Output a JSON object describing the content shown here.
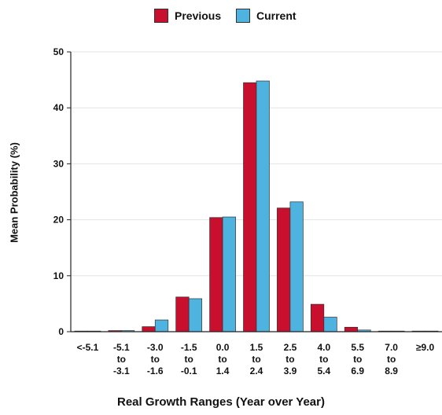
{
  "legend": {
    "previous_label": "Previous",
    "current_label": "Current"
  },
  "colors": {
    "previous": "#c8102e",
    "current": "#4fb3e0",
    "grid": "#e3e3e3",
    "axis": "#222222"
  },
  "chart_data": {
    "type": "bar",
    "xlabel": "Real Growth Ranges (Year over Year)",
    "ylabel": "Mean Probability (%)",
    "ylim": [
      0,
      50
    ],
    "yticks": [
      0,
      10,
      20,
      30,
      40,
      50
    ],
    "grid": true,
    "legend_position": "top-center",
    "categories": [
      [
        "<-5.1"
      ],
      [
        "-5.1",
        "to",
        "-3.1"
      ],
      [
        "-3.0",
        "to",
        "-1.6"
      ],
      [
        "-1.5",
        "to",
        "-0.1"
      ],
      [
        "0.0",
        "to",
        "1.4"
      ],
      [
        "1.5",
        "to",
        "2.4"
      ],
      [
        "2.5",
        "to",
        "3.9"
      ],
      [
        "4.0",
        "to",
        "5.4"
      ],
      [
        "5.5",
        "to",
        "6.9"
      ],
      [
        "7.0",
        "to",
        "8.9"
      ],
      [
        "≥9.0"
      ]
    ],
    "series": [
      {
        "name": "Previous",
        "values": [
          0.1,
          0.2,
          0.9,
          6.2,
          20.4,
          44.5,
          22.1,
          4.9,
          0.8,
          0.0,
          0.0
        ]
      },
      {
        "name": "Current",
        "values": [
          0.1,
          0.2,
          2.1,
          5.9,
          20.5,
          44.8,
          23.2,
          2.6,
          0.3,
          0.0,
          0.1
        ]
      }
    ]
  }
}
